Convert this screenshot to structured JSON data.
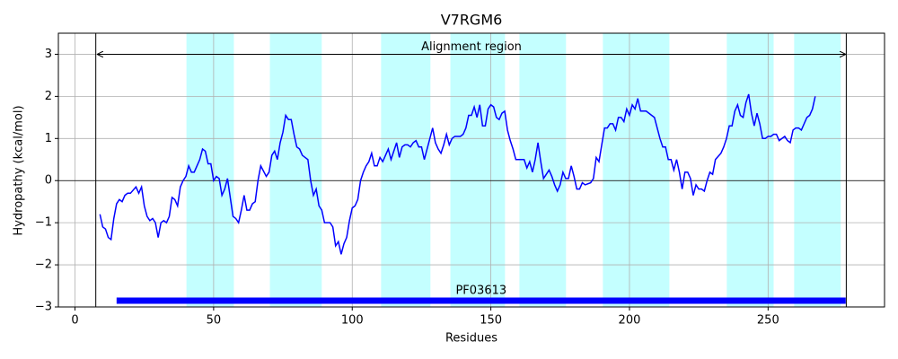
{
  "chart_data": {
    "type": "line",
    "title": "V7RGM6",
    "xlabel": "Residues",
    "ylabel": "Hydropathy (kcal/mol)",
    "xlim": [
      -6,
      292
    ],
    "ylim": [
      -3,
      3.5
    ],
    "xticks": [
      0,
      50,
      100,
      150,
      200,
      250
    ],
    "yticks": [
      {
        "value": -3,
        "label": "−3"
      },
      {
        "value": -2,
        "label": "−2"
      },
      {
        "value": -1,
        "label": "−1"
      },
      0,
      1,
      2,
      3
    ],
    "grid": true,
    "hline": 0,
    "spans": [
      [
        40.2,
        57.3
      ],
      [
        70.3,
        89
      ],
      [
        110.4,
        128.2
      ],
      [
        135.4,
        155.1
      ],
      [
        160.3,
        177.1
      ],
      [
        190.4,
        214.4
      ],
      [
        235.1,
        252
      ],
      [
        259.4,
        276.2
      ]
    ],
    "span_color": "#c4ffff",
    "vlines": [
      7.5,
      278.2
    ],
    "arrow": {
      "label": "Alignment region",
      "start": 8,
      "end": 278,
      "y": 3
    },
    "domain": {
      "label": "PF03613",
      "start": 15,
      "end": 278,
      "y": -2.85,
      "color": "#0000ff"
    },
    "series": [
      {
        "color": "#0000ff",
        "x": [
          9,
          10,
          11,
          12,
          13,
          14,
          15,
          16,
          17,
          18,
          19,
          20,
          22,
          23,
          24,
          25,
          26,
          27,
          28,
          29,
          30,
          31,
          32,
          33,
          34,
          35,
          36,
          37,
          38,
          39,
          40,
          41,
          42,
          43,
          45,
          46,
          47,
          48,
          49,
          50,
          51,
          52,
          53,
          54,
          55,
          56,
          57,
          58,
          59,
          60,
          61,
          62,
          63,
          64,
          65,
          66,
          67,
          69,
          70,
          71,
          72,
          73,
          74,
          75,
          76,
          77,
          78,
          79,
          80,
          81,
          82,
          83,
          84,
          85,
          86,
          87,
          88,
          89,
          90,
          92,
          93,
          94,
          95,
          96,
          97,
          98,
          99,
          100,
          101,
          102,
          103,
          104,
          105,
          106,
          107,
          108,
          109,
          110,
          111,
          112,
          113,
          114,
          116,
          117,
          118,
          119,
          120,
          121,
          122,
          123,
          124,
          125,
          126,
          127,
          128,
          129,
          130,
          131,
          132,
          133,
          134,
          135,
          136,
          137,
          139,
          140,
          141,
          142,
          143,
          144,
          145,
          146,
          147,
          148,
          149,
          150,
          151,
          152,
          153,
          154,
          155,
          156,
          157,
          158,
          159,
          160,
          162,
          163,
          164,
          165,
          166,
          167,
          168,
          169,
          170,
          171,
          172,
          173,
          174,
          175,
          176,
          177,
          178,
          179,
          180,
          181,
          182,
          183,
          184,
          186,
          187,
          188,
          189,
          190,
          191,
          192,
          193,
          194,
          195,
          196,
          197,
          198,
          199,
          200,
          201,
          202,
          203,
          204,
          205,
          206,
          207,
          209,
          210,
          211,
          212,
          213,
          214,
          215,
          216,
          217,
          218,
          219,
          220,
          221,
          222,
          223,
          224,
          225,
          226,
          227,
          228,
          229,
          230,
          231,
          233,
          234,
          235,
          236,
          237,
          238,
          239,
          240,
          241,
          242,
          243,
          244,
          245,
          246,
          247,
          248,
          249,
          250,
          251,
          252,
          253,
          254,
          256,
          257,
          258,
          259,
          260,
          261,
          262,
          263,
          264,
          265,
          266,
          267
        ],
        "values": [
          -0.8,
          -1.1,
          -1.15,
          -1.35,
          -1.4,
          -0.9,
          -0.55,
          -0.45,
          -0.5,
          -0.35,
          -0.3,
          -0.3,
          -0.15,
          -0.3,
          -0.15,
          -0.6,
          -0.85,
          -0.95,
          -0.9,
          -1.0,
          -1.35,
          -1.0,
          -0.95,
          -1.0,
          -0.85,
          -0.4,
          -0.45,
          -0.6,
          -0.15,
          0,
          0.1,
          0.35,
          0.2,
          0.2,
          0.5,
          0.75,
          0.7,
          0.4,
          0.4,
          0,
          0.1,
          0.05,
          -0.35,
          -0.2,
          0.05,
          -0.4,
          -0.85,
          -0.9,
          -1.0,
          -0.7,
          -0.35,
          -0.7,
          -0.7,
          -0.55,
          -0.5,
          0,
          0.35,
          0.1,
          0.2,
          0.6,
          0.7,
          0.5,
          0.9,
          1.15,
          1.55,
          1.45,
          1.45,
          1.1,
          0.8,
          0.75,
          0.6,
          0.55,
          0.5,
          0,
          -0.35,
          -0.2,
          -0.6,
          -0.7,
          -1.0,
          -1.0,
          -1.1,
          -1.55,
          -1.45,
          -1.75,
          -1.5,
          -1.35,
          -0.95,
          -0.65,
          -0.6,
          -0.45,
          0,
          0.2,
          0.35,
          0.45,
          0.65,
          0.35,
          0.35,
          0.55,
          0.45,
          0.6,
          0.75,
          0.5,
          0.9,
          0.55,
          0.8,
          0.85,
          0.85,
          0.8,
          0.9,
          0.95,
          0.8,
          0.8,
          0.5,
          0.75,
          1.0,
          1.25,
          0.9,
          0.75,
          0.65,
          0.85,
          1.1,
          0.85,
          1.0,
          1.05,
          1.05,
          1.1,
          1.25,
          1.55,
          1.55,
          1.75,
          1.5,
          1.8,
          1.3,
          1.3,
          1.7,
          1.8,
          1.75,
          1.5,
          1.45,
          1.6,
          1.65,
          1.2,
          0.95,
          0.75,
          0.5,
          0.5,
          0.5,
          0.3,
          0.45,
          0.2,
          0.5,
          0.9,
          0.45,
          0.05,
          0.15,
          0.25,
          0.1,
          -0.1,
          -0.25,
          -0.1,
          0.2,
          0.05,
          0.05,
          0.35,
          0.1,
          -0.2,
          -0.2,
          -0.05,
          -0.1,
          -0.05,
          0.05,
          0.55,
          0.45,
          0.85,
          1.25,
          1.25,
          1.35,
          1.35,
          1.2,
          1.5,
          1.5,
          1.4,
          1.7,
          1.55,
          1.8,
          1.7,
          1.95,
          1.65,
          1.65,
          1.65,
          1.6,
          1.5,
          1.25,
          1.0,
          0.8,
          0.8,
          0.5,
          0.5,
          0.25,
          0.5,
          0.2,
          -0.2,
          0.2,
          0.2,
          0.05,
          -0.35,
          -0.1,
          -0.2,
          -0.2,
          -0.25,
          0,
          0.2,
          0.15,
          0.5,
          0.65,
          0.8,
          1.0,
          1.3,
          1.3,
          1.65,
          1.8,
          1.55,
          1.5,
          1.85,
          2.05,
          1.6,
          1.3,
          1.6,
          1.35,
          1.0,
          1.0,
          1.05,
          1.05,
          1.1,
          1.1,
          0.95,
          1.05,
          0.95,
          0.9,
          1.2,
          1.25,
          1.25,
          1.2,
          1.35,
          1.5,
          1.55,
          1.7,
          2.0
        ]
      }
    ]
  }
}
